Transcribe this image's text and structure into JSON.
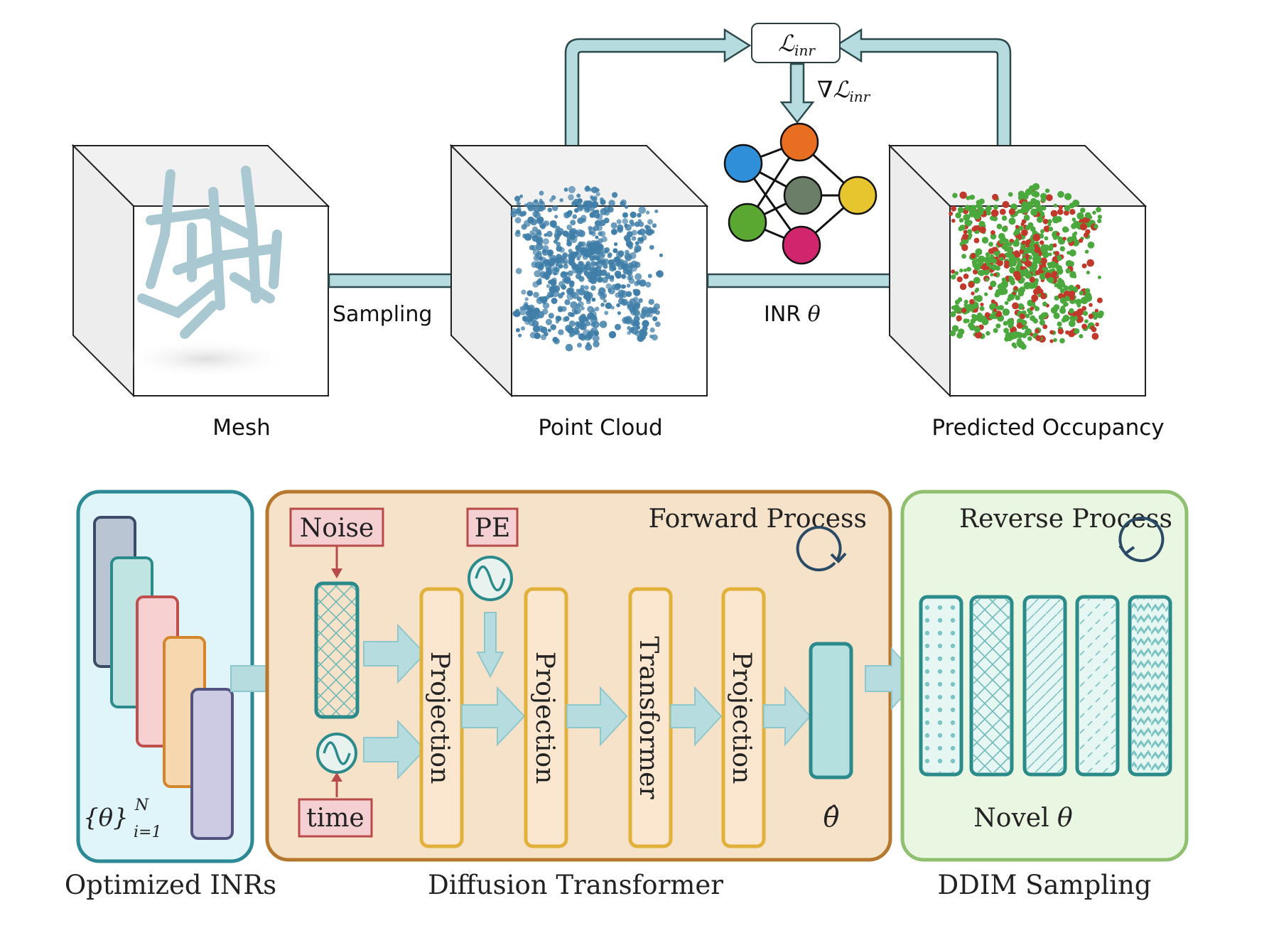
{
  "top": {
    "loss_label": "ℒ",
    "loss_sub": "inr",
    "grad_label": "∇ℒ",
    "grad_sub": "inr",
    "sampling_label": "Sampling",
    "inr_label": "INR ",
    "inr_theta": "θ",
    "captions": {
      "mesh": "Mesh",
      "point_cloud": "Point Cloud",
      "predicted": "Predicted Occupancy"
    },
    "colors": {
      "arrow_fill": "#b7dcdf",
      "arrow_stroke": "#2c4a4e",
      "mesh": "#a9c8d2",
      "points": "#3f7ea8",
      "occ_green": "#4aa83d",
      "occ_red": "#c0392b",
      "node_blue": "#2f8fd8",
      "node_orange": "#e86f22",
      "node_gray": "#6b7f68",
      "node_yellow": "#e6c52f",
      "node_green": "#5aa832",
      "node_pink": "#d1266e"
    }
  },
  "bottom": {
    "panel_inrs": {
      "theta_set": "{θ}",
      "sup": "N",
      "sub": "i=1",
      "caption": "Optimized INRs",
      "colors": [
        "#b9c5d3",
        "#bfe4e2",
        "#f7d1d1",
        "#f6d7ae",
        "#cccbe3"
      ]
    },
    "panel_diffusion": {
      "title": "Forward Process",
      "noise_label": "Noise",
      "pe_label": "PE",
      "time_label": "time",
      "blocks": [
        "Projection",
        "Projection",
        "Transformer",
        "Projection"
      ],
      "theta_hat": "θ̂",
      "caption": "Diffusion Transformer"
    },
    "panel_ddim": {
      "title": "Reverse Process",
      "novel_label": "Novel ",
      "novel_theta": "θ",
      "caption": "DDIM Sampling"
    },
    "colors": {
      "inr_panel_bg": "#dff5f9",
      "inr_panel_border": "#2b8a95",
      "diff_panel_bg": "#f6e2c8",
      "diff_panel_border": "#b6782e",
      "ddim_panel_bg": "#e9f6e1",
      "ddim_panel_border": "#8fc070",
      "block_fill": "#fbe6cf",
      "block_border": "#e1b13c",
      "label_fill": "#f5d0d2",
      "label_border": "#b94a4a",
      "teal": "#2b8a8a",
      "teal_fill": "#b5e0e0",
      "arrow_fill": "#b7dcdf"
    }
  }
}
